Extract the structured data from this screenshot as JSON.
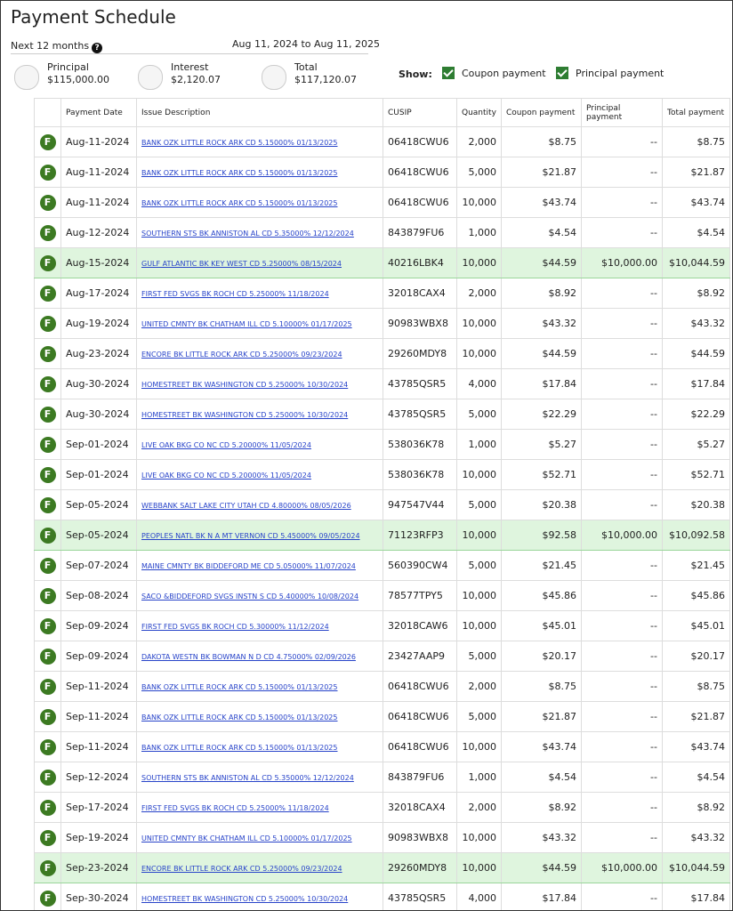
{
  "header": {
    "title": "Payment Schedule",
    "period": "Next 12 months",
    "help": "?",
    "date_range": "Aug 11, 2024 to Aug 11, 2025"
  },
  "summary": [
    {
      "label": "Principal",
      "value": "$115,000.00"
    },
    {
      "label": "Interest",
      "value": "$2,120.07"
    },
    {
      "label": "Total",
      "value": "$117,120.07"
    }
  ],
  "show": {
    "label": "Show:",
    "options": [
      {
        "label": "Coupon payment",
        "checked": true
      },
      {
        "label": "Principal payment",
        "checked": true
      }
    ]
  },
  "table": {
    "columns": [
      "Payment Date",
      "Issue Description",
      "CUSIP",
      "Quantity",
      "Coupon payment",
      "Principal payment",
      "Total payment"
    ],
    "rows": [
      {
        "cells": [
          "F",
          "Aug-11-2024",
          "BANK OZK LITTLE ROCK ARK CD 5.15000% 01/13/2025",
          "06418CWU6",
          "2,000",
          "$8.75",
          "--",
          "$8.75"
        ]
      },
      {
        "cells": [
          "F",
          "Aug-11-2024",
          "BANK OZK LITTLE ROCK ARK CD 5.15000% 01/13/2025",
          "06418CWU6",
          "5,000",
          "$21.87",
          "--",
          "$21.87"
        ]
      },
      {
        "cells": [
          "F",
          "Aug-11-2024",
          "BANK OZK LITTLE ROCK ARK CD 5.15000% 01/13/2025",
          "06418CWU6",
          "10,000",
          "$43.74",
          "--",
          "$43.74"
        ]
      },
      {
        "cells": [
          "F",
          "Aug-12-2024",
          "SOUTHERN STS BK ANNISTON AL CD 5.35000% 12/12/2024",
          "843879FU6",
          "1,000",
          "$4.54",
          "--",
          "$4.54"
        ]
      },
      {
        "cells": [
          "F",
          "Aug-15-2024",
          "GULF ATLANTIC BK KEY WEST CD 5.25000% 08/15/2024",
          "40216LBK4",
          "10,000",
          "$44.59",
          "$10,000.00",
          "$10,044.59"
        ],
        "highlighted": true
      },
      {
        "cells": [
          "F",
          "Aug-17-2024",
          "FIRST FED SVGS BK ROCH CD 5.25000% 11/18/2024",
          "32018CAX4",
          "2,000",
          "$8.92",
          "--",
          "$8.92"
        ]
      },
      {
        "cells": [
          "F",
          "Aug-19-2024",
          "UNITED CMNTY BK CHATHAM ILL CD 5.10000% 01/17/2025",
          "90983WBX8",
          "10,000",
          "$43.32",
          "--",
          "$43.32"
        ]
      },
      {
        "cells": [
          "F",
          "Aug-23-2024",
          "ENCORE BK LITTLE ROCK ARK CD 5.25000% 09/23/2024",
          "29260MDY8",
          "10,000",
          "$44.59",
          "--",
          "$44.59"
        ]
      },
      {
        "cells": [
          "F",
          "Aug-30-2024",
          "HOMESTREET BK WASHINGTON CD 5.25000% 10/30/2024",
          "43785QSR5",
          "4,000",
          "$17.84",
          "--",
          "$17.84"
        ]
      },
      {
        "cells": [
          "F",
          "Aug-30-2024",
          "HOMESTREET BK WASHINGTON CD 5.25000% 10/30/2024",
          "43785QSR5",
          "5,000",
          "$22.29",
          "--",
          "$22.29"
        ]
      },
      {
        "cells": [
          "F",
          "Sep-01-2024",
          "LIVE OAK BKG CO NC CD 5.20000% 11/05/2024",
          "538036K78",
          "1,000",
          "$5.27",
          "--",
          "$5.27"
        ]
      },
      {
        "cells": [
          "F",
          "Sep-01-2024",
          "LIVE OAK BKG CO NC CD 5.20000% 11/05/2024",
          "538036K78",
          "10,000",
          "$52.71",
          "--",
          "$52.71"
        ]
      },
      {
        "cells": [
          "F",
          "Sep-05-2024",
          "WEBBANK SALT LAKE CITY UTAH CD 4.80000% 08/05/2026",
          "947547V44",
          "5,000",
          "$20.38",
          "--",
          "$20.38"
        ]
      },
      {
        "cells": [
          "F",
          "Sep-05-2024",
          "PEOPLES NATL BK N A MT VERNON CD 5.45000% 09/05/2024",
          "71123RFP3",
          "10,000",
          "$92.58",
          "$10,000.00",
          "$10,092.58"
        ],
        "highlighted": true
      },
      {
        "cells": [
          "F",
          "Sep-07-2024",
          "MAINE CMNTY BK BIDDEFORD ME CD 5.05000% 11/07/2024",
          "560390CW4",
          "5,000",
          "$21.45",
          "--",
          "$21.45"
        ]
      },
      {
        "cells": [
          "F",
          "Sep-08-2024",
          "SACO &BIDDEFORD SVGS INSTN S CD 5.40000% 10/08/2024",
          "78577TPY5",
          "10,000",
          "$45.86",
          "--",
          "$45.86"
        ]
      },
      {
        "cells": [
          "F",
          "Sep-09-2024",
          "FIRST FED SVGS BK ROCH CD 5.30000% 11/12/2024",
          "32018CAW6",
          "10,000",
          "$45.01",
          "--",
          "$45.01"
        ]
      },
      {
        "cells": [
          "F",
          "Sep-09-2024",
          "DAKOTA WESTN BK BOWMAN N D CD 4.75000% 02/09/2026",
          "23427AAP9",
          "5,000",
          "$20.17",
          "--",
          "$20.17"
        ]
      },
      {
        "cells": [
          "F",
          "Sep-11-2024",
          "BANK OZK LITTLE ROCK ARK CD 5.15000% 01/13/2025",
          "06418CWU6",
          "2,000",
          "$8.75",
          "--",
          "$8.75"
        ]
      },
      {
        "cells": [
          "F",
          "Sep-11-2024",
          "BANK OZK LITTLE ROCK ARK CD 5.15000% 01/13/2025",
          "06418CWU6",
          "5,000",
          "$21.87",
          "--",
          "$21.87"
        ]
      },
      {
        "cells": [
          "F",
          "Sep-11-2024",
          "BANK OZK LITTLE ROCK ARK CD 5.15000% 01/13/2025",
          "06418CWU6",
          "10,000",
          "$43.74",
          "--",
          "$43.74"
        ]
      },
      {
        "cells": [
          "F",
          "Sep-12-2024",
          "SOUTHERN STS BK ANNISTON AL CD 5.35000% 12/12/2024",
          "843879FU6",
          "1,000",
          "$4.54",
          "--",
          "$4.54"
        ]
      },
      {
        "cells": [
          "F",
          "Sep-17-2024",
          "FIRST FED SVGS BK ROCH CD 5.25000% 11/18/2024",
          "32018CAX4",
          "2,000",
          "$8.92",
          "--",
          "$8.92"
        ]
      },
      {
        "cells": [
          "F",
          "Sep-19-2024",
          "UNITED CMNTY BK CHATHAM ILL CD 5.10000% 01/17/2025",
          "90983WBX8",
          "10,000",
          "$43.32",
          "--",
          "$43.32"
        ]
      },
      {
        "cells": [
          "F",
          "Sep-23-2024",
          "ENCORE BK LITTLE ROCK ARK CD 5.25000% 09/23/2024",
          "29260MDY8",
          "10,000",
          "$44.59",
          "$10,000.00",
          "$10,044.59"
        ],
        "highlighted": true
      },
      {
        "cells": [
          "F",
          "Sep-30-2024",
          "HOMESTREET BK WASHINGTON CD 5.25000% 10/30/2024",
          "43785QSR5",
          "4,000",
          "$17.84",
          "--",
          "$17.84"
        ]
      }
    ]
  }
}
